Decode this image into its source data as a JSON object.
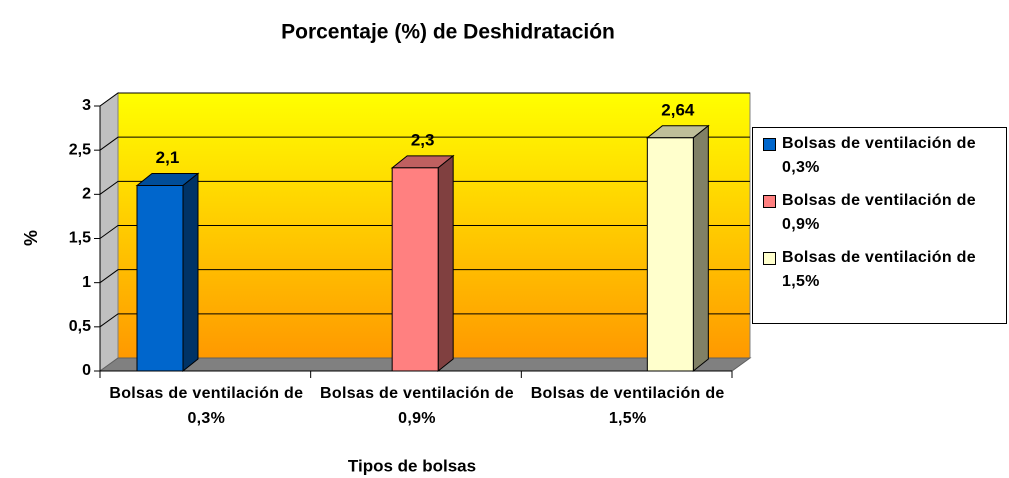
{
  "chart_data": {
    "type": "bar3d",
    "title": "Porcentaje (%) de Deshidratación",
    "x_label": "Tipos de bolsas",
    "y_label": "%",
    "categories": [
      "Bolsas de ventilación de 0,3%",
      "Bolsas de ventilación de 0,9%",
      "Bolsas de ventilación de 1,5%"
    ],
    "series": [
      {
        "name": "Bolsas de ventilación de 0,3%",
        "color": "#0066cc",
        "values": [
          2.1,
          null,
          null
        ],
        "value_labels": [
          "2,1",
          null,
          null
        ]
      },
      {
        "name": "Bolsas de ventilación de 0,9%",
        "color": "#ff8080",
        "values": [
          null,
          2.3,
          null
        ],
        "value_labels": [
          null,
          "2,3",
          null
        ]
      },
      {
        "name": "Bolsas de ventilación de 1,5%",
        "color": "#ffffcc",
        "values": [
          null,
          null,
          2.64
        ],
        "value_labels": [
          null,
          null,
          "2,64"
        ]
      }
    ],
    "ylim": [
      0,
      3
    ],
    "yticks": [
      0,
      {
        "value": 0.5,
        "label": "0,5"
      },
      1,
      {
        "value": 1.5,
        "label": "1,5"
      },
      2,
      {
        "value": 2.5,
        "label": "2,5"
      },
      3
    ],
    "grid": true,
    "legend": "right"
  }
}
